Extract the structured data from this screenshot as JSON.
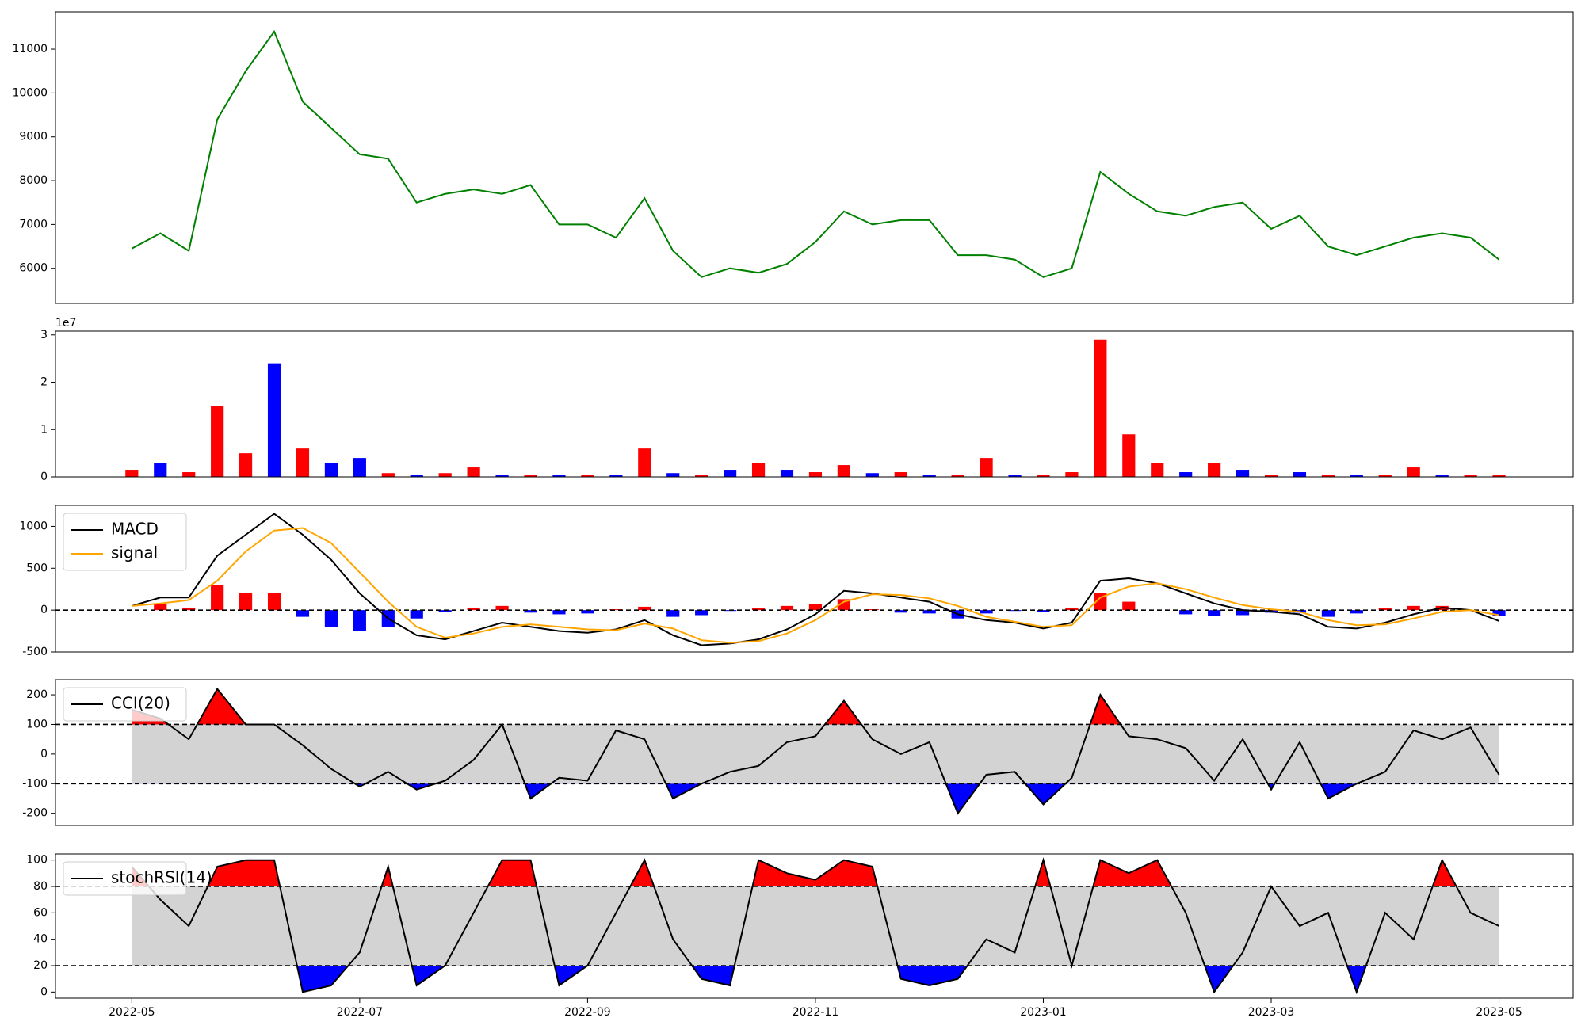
{
  "chart_data": [
    {
      "type": "line",
      "x": [
        0,
        0.25,
        0.5,
        0.75,
        1,
        1.25,
        1.5,
        1.75,
        2,
        2.25,
        2.5,
        2.75,
        3,
        3.25,
        3.5,
        3.75,
        4,
        4.25,
        4.5,
        4.75,
        5,
        5.25,
        5.5,
        5.75,
        6,
        6.25,
        6.5,
        6.75,
        7,
        7.25,
        7.5,
        7.75,
        8,
        8.25,
        8.5,
        8.75,
        9,
        9.25,
        9.5,
        9.75,
        10,
        10.25,
        10.5,
        10.75,
        11,
        11.25,
        11.5,
        11.75,
        12
      ],
      "series": [
        {
          "color": "#008000",
          "values": [
            6450,
            6800,
            6400,
            9400,
            10500,
            11400,
            9800,
            9200,
            8600,
            8500,
            7500,
            7700,
            7800,
            7700,
            7900,
            7000,
            7000,
            6700,
            7600,
            6400,
            5800,
            6000,
            5900,
            6100,
            6600,
            7300,
            7000,
            7100,
            7100,
            6300,
            6300,
            6200,
            5800,
            6000,
            8200,
            7700,
            7300,
            7200,
            7400,
            7500,
            6900,
            7200,
            6500,
            6300,
            6500,
            6700,
            6800,
            6700,
            6200
          ]
        }
      ],
      "xlim": [
        -0.67,
        12.65
      ],
      "ylim": [
        5200,
        11850
      ],
      "yticks": [
        6000,
        7000,
        8000,
        9000,
        10000,
        11000
      ]
    },
    {
      "type": "bar",
      "x": [
        0,
        0.25,
        0.5,
        0.75,
        1,
        1.25,
        1.5,
        1.75,
        2,
        2.25,
        2.5,
        2.75,
        3,
        3.25,
        3.5,
        3.75,
        4,
        4.25,
        4.5,
        4.75,
        5,
        5.25,
        5.5,
        5.75,
        6,
        6.25,
        6.5,
        6.75,
        7,
        7.25,
        7.5,
        7.75,
        8,
        8.25,
        8.5,
        8.75,
        9,
        9.25,
        9.5,
        9.75,
        10,
        10.25,
        10.5,
        10.75,
        11,
        11.25,
        11.5,
        11.75,
        12
      ],
      "values": [
        0.15,
        0.3,
        0.1,
        1.5,
        0.5,
        2.4,
        0.6,
        0.3,
        0.4,
        0.08,
        0.05,
        0.08,
        0.2,
        0.05,
        0.05,
        0.04,
        0.04,
        0.05,
        0.6,
        0.08,
        0.05,
        0.15,
        0.3,
        0.15,
        0.1,
        0.25,
        0.08,
        0.1,
        0.05,
        0.04,
        0.4,
        0.05,
        0.05,
        0.1,
        2.9,
        0.9,
        0.3,
        0.1,
        0.3,
        0.15,
        0.05,
        0.1,
        0.05,
        0.04,
        0.04,
        0.2,
        0.05,
        0.05,
        0.05
      ],
      "colors": [
        "red",
        "blue",
        "red",
        "red",
        "red",
        "blue",
        "red",
        "blue",
        "blue",
        "red",
        "blue",
        "red",
        "red",
        "blue",
        "red",
        "blue",
        "red",
        "blue",
        "red",
        "blue",
        "red",
        "blue",
        "red",
        "blue",
        "red",
        "red",
        "blue",
        "red",
        "blue",
        "red",
        "red",
        "blue",
        "red",
        "red",
        "red",
        "red",
        "red",
        "blue",
        "red",
        "blue",
        "red",
        "blue",
        "red",
        "blue",
        "red",
        "red",
        "blue",
        "red",
        "red"
      ],
      "offset_label": "1e7",
      "xlim": [
        -0.67,
        12.65
      ],
      "ylim": [
        0,
        3.08
      ],
      "yticks": [
        0,
        1,
        2,
        3
      ]
    },
    {
      "type": "macd",
      "x": [
        0,
        0.25,
        0.5,
        0.75,
        1,
        1.25,
        1.5,
        1.75,
        2,
        2.25,
        2.5,
        2.75,
        3,
        3.25,
        3.5,
        3.75,
        4,
        4.25,
        4.5,
        4.75,
        5,
        5.25,
        5.5,
        5.75,
        6,
        6.25,
        6.5,
        6.75,
        7,
        7.25,
        7.5,
        7.75,
        8,
        8.25,
        8.5,
        8.75,
        9,
        9.25,
        9.5,
        9.75,
        10,
        10.25,
        10.5,
        10.75,
        11,
        11.25,
        11.5,
        11.75,
        12
      ],
      "series": [
        {
          "name": "MACD",
          "color": "#000000",
          "values": [
            50,
            150,
            150,
            650,
            900,
            1150,
            900,
            600,
            200,
            -100,
            -300,
            -350,
            -250,
            -150,
            -200,
            -250,
            -270,
            -230,
            -120,
            -300,
            -420,
            -400,
            -350,
            -230,
            -50,
            230,
            200,
            150,
            100,
            -50,
            -120,
            -150,
            -220,
            -150,
            350,
            380,
            320,
            200,
            80,
            0,
            -20,
            -50,
            -200,
            -220,
            -150,
            -50,
            30,
            0,
            -130
          ]
        },
        {
          "name": "signal",
          "color": "#ffa500",
          "values": [
            50,
            80,
            120,
            350,
            700,
            950,
            980,
            800,
            450,
            100,
            -200,
            -330,
            -280,
            -200,
            -170,
            -200,
            -230,
            -240,
            -160,
            -220,
            -360,
            -390,
            -370,
            -280,
            -120,
            100,
            190,
            180,
            140,
            50,
            -80,
            -140,
            -200,
            -180,
            150,
            280,
            320,
            250,
            150,
            60,
            10,
            -20,
            -120,
            -180,
            -170,
            -100,
            -20,
            0,
            -60
          ]
        }
      ],
      "histogram": [
        0,
        70,
        30,
        300,
        200,
        200,
        -80,
        -200,
        -250,
        -200,
        -100,
        -20,
        30,
        50,
        -30,
        -50,
        -40,
        10,
        40,
        -80,
        -60,
        -10,
        20,
        50,
        70,
        130,
        10,
        -30,
        -40,
        -100,
        -40,
        -10,
        -20,
        30,
        200,
        100,
        0,
        -50,
        -70,
        -60,
        -30,
        -30,
        -80,
        -40,
        20,
        50,
        50,
        0,
        -70
      ],
      "histogram_colors": [
        "red",
        "blue"
      ],
      "hlines": [
        0
      ],
      "legend": "upper left",
      "xlim": [
        -0.67,
        12.65
      ],
      "ylim": [
        -500,
        1250
      ],
      "yticks": [
        -500,
        0,
        500,
        1000
      ]
    },
    {
      "type": "oscillator",
      "x": [
        0,
        0.25,
        0.5,
        0.75,
        1,
        1.25,
        1.5,
        1.75,
        2,
        2.25,
        2.5,
        2.75,
        3,
        3.25,
        3.5,
        3.75,
        4,
        4.25,
        4.5,
        4.75,
        5,
        5.25,
        5.5,
        5.75,
        6,
        6.25,
        6.5,
        6.75,
        7,
        7.25,
        7.5,
        7.75,
        8,
        8.25,
        8.5,
        8.75,
        9,
        9.25,
        9.5,
        9.75,
        10,
        10.25,
        10.5,
        10.75,
        11,
        11.25,
        11.5,
        11.75,
        12
      ],
      "series": [
        {
          "name": "CCI(20)",
          "color": "#000000",
          "values": [
            150,
            120,
            50,
            220,
            100,
            100,
            30,
            -50,
            -110,
            -60,
            -120,
            -90,
            -20,
            100,
            -150,
            -80,
            -90,
            80,
            50,
            -150,
            -100,
            -60,
            -40,
            40,
            60,
            180,
            50,
            0,
            40,
            -200,
            -70,
            -60,
            -170,
            -80,
            200,
            60,
            50,
            20,
            -90,
            50,
            -120,
            40,
            -150,
            -100,
            -60,
            80,
            50,
            90,
            -70
          ]
        }
      ],
      "hlines": [
        -100,
        100
      ],
      "fill_colors": [
        "blue",
        "red"
      ],
      "band_color": "#d3d3d3",
      "legend": "upper left",
      "xlim": [
        -0.67,
        12.65
      ],
      "ylim": [
        -241,
        251
      ],
      "yticks": [
        -200,
        -100,
        0,
        100,
        200
      ]
    },
    {
      "type": "oscillator",
      "x": [
        0,
        0.25,
        0.5,
        0.75,
        1,
        1.25,
        1.5,
        1.75,
        2,
        2.25,
        2.5,
        2.75,
        3,
        3.25,
        3.5,
        3.75,
        4,
        4.25,
        4.5,
        4.75,
        5,
        5.25,
        5.5,
        5.75,
        6,
        6.25,
        6.5,
        6.75,
        7,
        7.25,
        7.5,
        7.75,
        8,
        8.25,
        8.5,
        8.75,
        9,
        9.25,
        9.5,
        9.75,
        10,
        10.25,
        10.5,
        10.75,
        11,
        11.25,
        11.5,
        11.75,
        12
      ],
      "series": [
        {
          "name": "stochRSI(14)",
          "color": "#000000",
          "values": [
            95,
            70,
            50,
            95,
            100,
            100,
            0,
            5,
            30,
            95,
            5,
            20,
            60,
            100,
            100,
            5,
            20,
            60,
            100,
            40,
            10,
            5,
            100,
            90,
            85,
            100,
            95,
            10,
            5,
            10,
            40,
            30,
            100,
            20,
            100,
            90,
            100,
            60,
            0,
            30,
            80,
            50,
            60,
            0,
            60,
            40,
            100,
            60,
            50
          ]
        }
      ],
      "hlines": [
        20,
        80
      ],
      "fill_colors": [
        "blue",
        "red"
      ],
      "band_color": "#d3d3d3",
      "legend": "upper left",
      "xlim": [
        -0.67,
        12.65
      ],
      "ylim": [
        -4.6,
        104.6
      ],
      "yticks": [
        0,
        20,
        40,
        60,
        80,
        100
      ],
      "xticks": [
        {
          "value": 0,
          "label": "2022-05"
        },
        {
          "value": 2,
          "label": "2022-07"
        },
        {
          "value": 4,
          "label": "2022-09"
        },
        {
          "value": 6,
          "label": "2022-11"
        },
        {
          "value": 8,
          "label": "2023-01"
        },
        {
          "value": 10,
          "label": "2023-03"
        },
        {
          "value": 12,
          "label": "2023-05"
        }
      ]
    }
  ]
}
